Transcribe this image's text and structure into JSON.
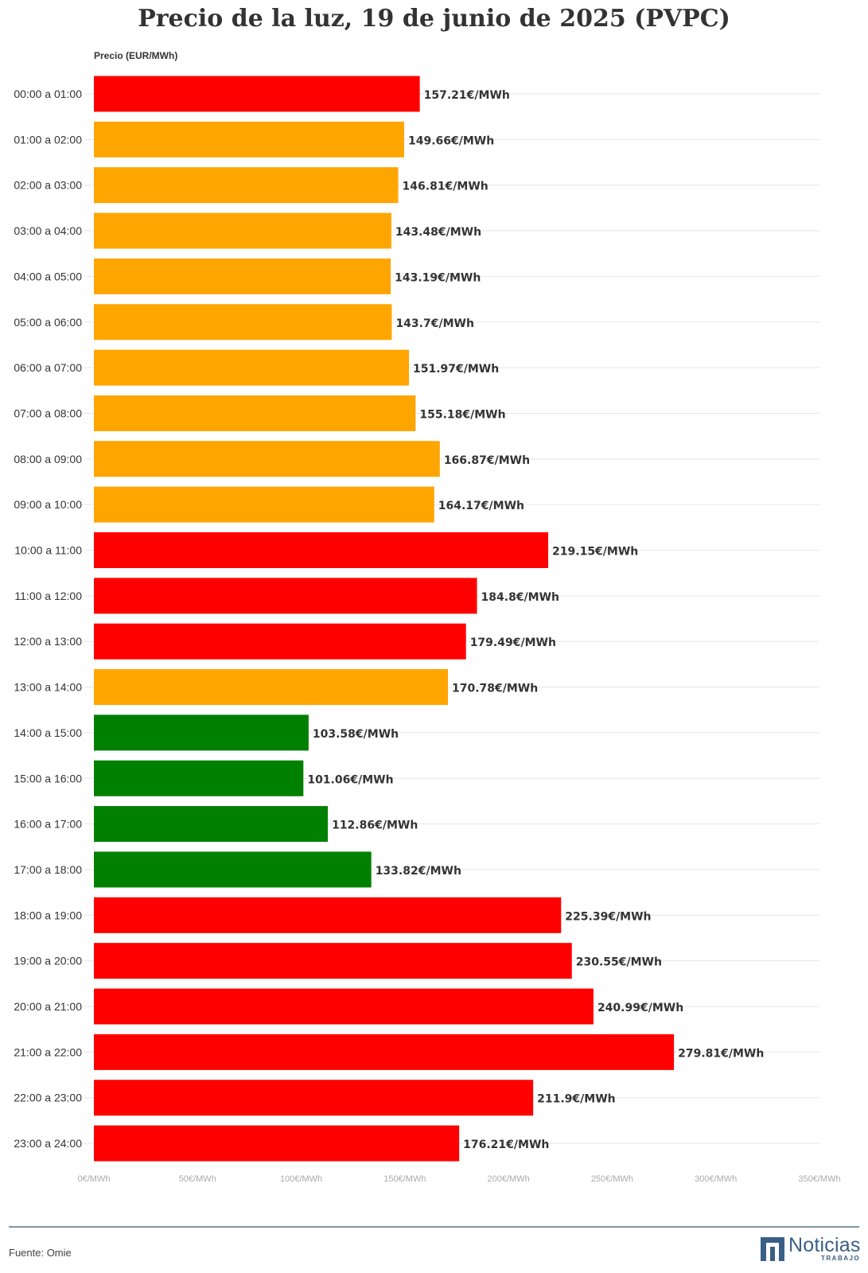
{
  "chart_data": {
    "type": "bar",
    "orientation": "horizontal",
    "title": "Precio de la luz, 19 de junio de 2025 (PVPC)",
    "ylabel": "Precio (EUR/MWh)",
    "categories": [
      "00:00 a 01:00",
      "01:00 a 02:00",
      "02:00 a 03:00",
      "03:00 a 04:00",
      "04:00 a 05:00",
      "05:00 a 06:00",
      "06:00 a 07:00",
      "07:00 a 08:00",
      "08:00 a 09:00",
      "09:00 a 10:00",
      "10:00 a 11:00",
      "11:00 a 12:00",
      "12:00 a 13:00",
      "13:00 a 14:00",
      "14:00 a 15:00",
      "15:00 a 16:00",
      "16:00 a 17:00",
      "17:00 a 18:00",
      "18:00 a 19:00",
      "19:00 a 20:00",
      "20:00 a 21:00",
      "21:00 a 22:00",
      "22:00 a 23:00",
      "23:00 a 24:00"
    ],
    "values": [
      157.21,
      149.66,
      146.81,
      143.48,
      143.19,
      143.7,
      151.97,
      155.18,
      166.87,
      164.17,
      219.15,
      184.8,
      179.49,
      170.78,
      103.58,
      101.06,
      112.86,
      133.82,
      225.39,
      230.55,
      240.99,
      279.81,
      211.9,
      176.21
    ],
    "data_labels": [
      "157.21€/MWh",
      "149.66€/MWh",
      "146.81€/MWh",
      "143.48€/MWh",
      "143.19€/MWh",
      "143.7€/MWh",
      "151.97€/MWh",
      "155.18€/MWh",
      "166.87€/MWh",
      "164.17€/MWh",
      "219.15€/MWh",
      "184.8€/MWh",
      "179.49€/MWh",
      "170.78€/MWh",
      "103.58€/MWh",
      "101.06€/MWh",
      "112.86€/MWh",
      "133.82€/MWh",
      "225.39€/MWh",
      "230.55€/MWh",
      "240.99€/MWh",
      "279.81€/MWh",
      "211.9€/MWh",
      "176.21€/MWh"
    ],
    "bar_colors": [
      "#ff0000",
      "#ffa500",
      "#ffa500",
      "#ffa500",
      "#ffa500",
      "#ffa500",
      "#ffa500",
      "#ffa500",
      "#ffa500",
      "#ffa500",
      "#ff0000",
      "#ff0000",
      "#ff0000",
      "#ffa500",
      "#008000",
      "#008000",
      "#008000",
      "#008000",
      "#ff0000",
      "#ff0000",
      "#ff0000",
      "#ff0000",
      "#ff0000",
      "#ff0000"
    ],
    "xlim": [
      0,
      350
    ],
    "xticks": [
      0,
      50,
      100,
      150,
      200,
      250,
      300,
      350
    ],
    "xtick_labels": [
      "0€/MWh",
      "50€/MWh",
      "100€/MWh",
      "150€/MWh",
      "200€/MWh",
      "250€/MWh",
      "300€/MWh",
      "350€/MWh"
    ],
    "grid": true,
    "legend": "none"
  },
  "footer": {
    "source": "Fuente: Omie",
    "logo_name": "Noticias",
    "logo_sub": "TRABAJO",
    "rule_color": "#7d97a7",
    "brand_color": "#3a5f86"
  }
}
